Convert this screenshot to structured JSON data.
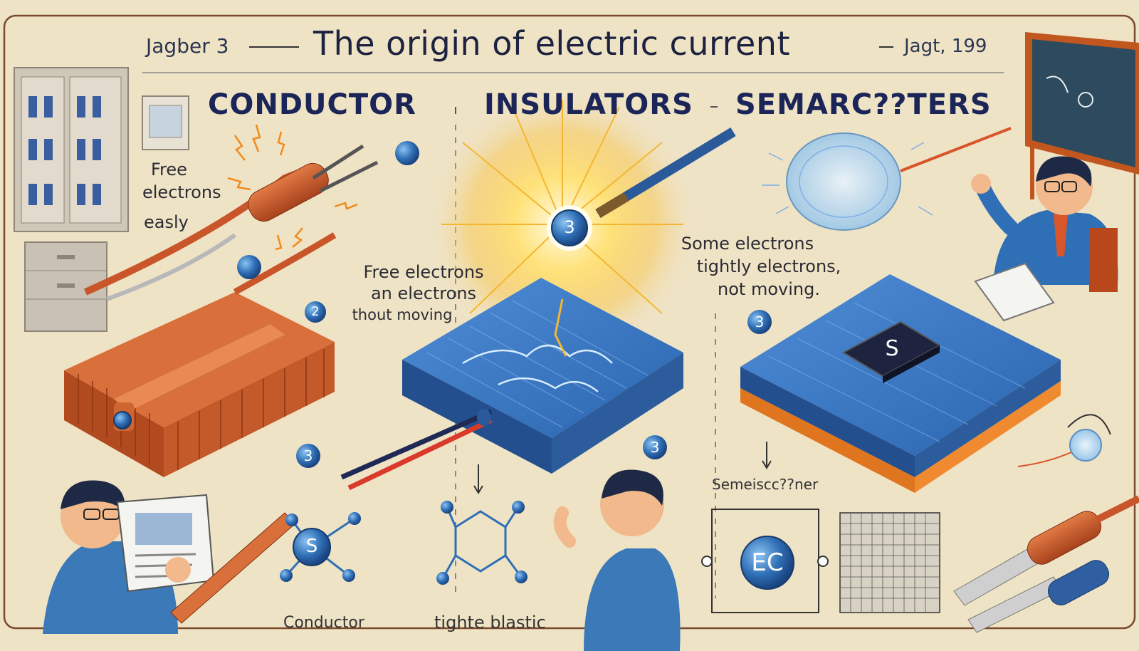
{
  "header": {
    "left_tag": "Jagber 3",
    "title": "The origin of electric current",
    "right_tag": "Jagt, 199"
  },
  "sections": {
    "conductor": "CONDUCTOR",
    "insulators": "INSULATORS",
    "semiconductors": "SEMARC??TERS"
  },
  "labels": {
    "free_electrons_left": [
      "Free",
      "electrons",
      "easly"
    ],
    "insulator_note": [
      "Free electrons",
      "an electrons",
      "thout moving"
    ],
    "semiconductor_note": [
      "Some electrons",
      "tightly electrons,",
      "not moving."
    ],
    "conductor_caption": "Conductor",
    "insulator_caption": "tighte blastic",
    "semi_caption": "Semeiscc??ner"
  },
  "badges": {
    "sun_ball": "3",
    "badge_2": "2",
    "badge_3a": "3",
    "badge_3b": "3",
    "badge_3c": "3",
    "chip_letter": "S",
    "molecule_letter": "S",
    "ec": "EC"
  },
  "colors": {
    "background": "#efe3c6",
    "accent_blue": "#2f6fb5",
    "copper": "#c8562a",
    "title_navy": "#1d2240"
  }
}
